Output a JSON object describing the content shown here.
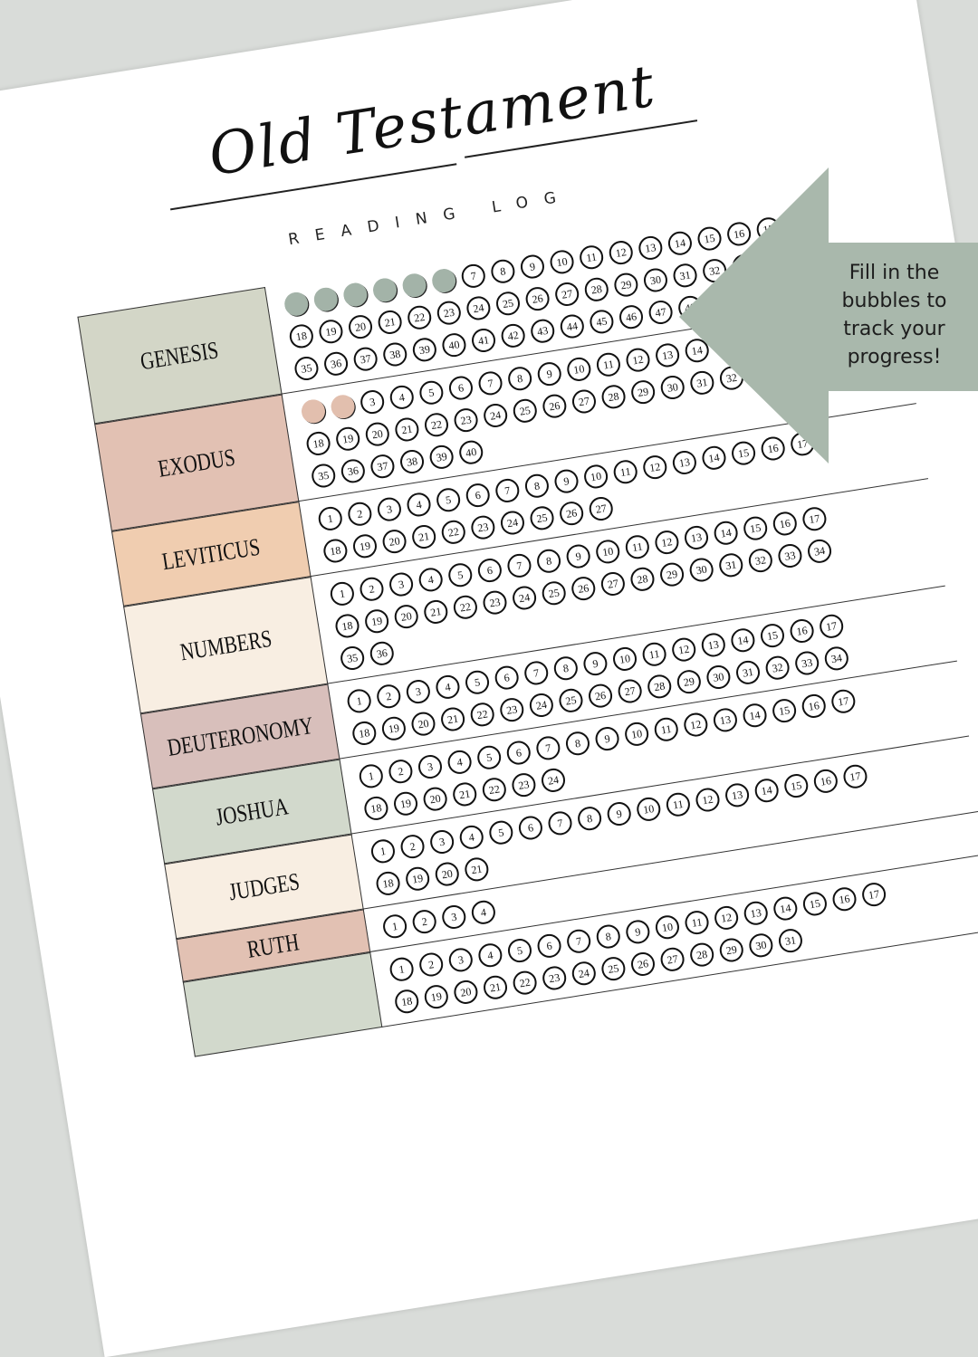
{
  "header": {
    "title": "Old Testament",
    "subtitle": "READING LOG"
  },
  "colors": {
    "background": "#d9dcd9",
    "callout": "#a9b8ac",
    "filled_green": "#a3b3a8",
    "filled_pink": "#e2bfae"
  },
  "books": [
    {
      "name": "GENESIS",
      "chapters": 50,
      "filled": 6,
      "color": "#d3d6c7",
      "fill_color": "#a3b3a8"
    },
    {
      "name": "EXODUS",
      "chapters": 40,
      "filled": 2,
      "color": "#e2c1b3",
      "fill_color": "#e2bfae"
    },
    {
      "name": "LEVITICUS",
      "chapters": 27,
      "filled": 0,
      "color": "#f0cdb0",
      "fill_color": "#f0cdb0"
    },
    {
      "name": "NUMBERS",
      "chapters": 36,
      "filled": 0,
      "color": "#f8eee2",
      "fill_color": "#f8eee2"
    },
    {
      "name": "DEUTERONOMY",
      "chapters": 34,
      "filled": 0,
      "color": "#d8bfbb",
      "fill_color": "#d8bfbb"
    },
    {
      "name": "JOSHUA",
      "chapters": 24,
      "filled": 0,
      "color": "#d2d9cc",
      "fill_color": "#d2d9cc"
    },
    {
      "name": "JUDGES",
      "chapters": 21,
      "filled": 0,
      "color": "#f8eee2",
      "fill_color": "#f8eee2"
    },
    {
      "name": "RUTH",
      "chapters": 4,
      "filled": 0,
      "color": "#e2c1b3",
      "fill_color": "#e2c1b3"
    },
    {
      "name": "",
      "chapters": 31,
      "filled": 0,
      "color": "#d2d9cc",
      "fill_color": "#d2d9cc"
    }
  ],
  "callout": {
    "text_line1": "Fill in the bubbles to",
    "text_line2": "track your progress!",
    "icon": "arrow-left-icon"
  }
}
